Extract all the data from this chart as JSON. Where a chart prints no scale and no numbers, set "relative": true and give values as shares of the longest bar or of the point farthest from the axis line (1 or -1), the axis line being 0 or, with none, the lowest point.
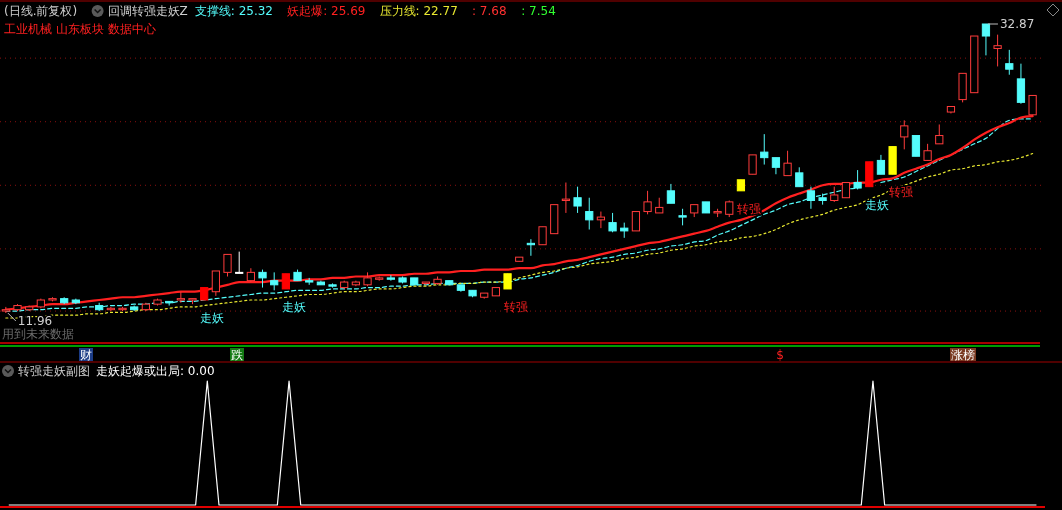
{
  "chart_data": [
    {
      "type": "candlestick",
      "title": "回调转强走妖Z",
      "subtitle": "工业机械 山东板块 数据中心",
      "categories": [
        null,
        null,
        null,
        null,
        null,
        null,
        null,
        null,
        null,
        null,
        null,
        null,
        null,
        null,
        null,
        null,
        null,
        null,
        null,
        null,
        null,
        null,
        null,
        null,
        null,
        null,
        null,
        null,
        null,
        null,
        null,
        null,
        null,
        null,
        null,
        null,
        null,
        null,
        null,
        null,
        null,
        null,
        null,
        null,
        null,
        null,
        null,
        null,
        null,
        null,
        null,
        null,
        null,
        null,
        null,
        null,
        null,
        null,
        null,
        null,
        null,
        null,
        null,
        null,
        null,
        null,
        null,
        null,
        null,
        null,
        null,
        null,
        null,
        null,
        null,
        null,
        null,
        null,
        null,
        null,
        null,
        null,
        null,
        null,
        null,
        null,
        null,
        null,
        null
      ],
      "ohlc": [
        [
          12.1,
          12.4,
          11.96,
          12.2
        ],
        [
          12.2,
          12.6,
          12.1,
          12.5
        ],
        [
          12.2,
          12.5,
          12.1,
          12.4
        ],
        [
          12.4,
          13.0,
          12.3,
          12.9
        ],
        [
          12.9,
          13.1,
          12.8,
          13.0
        ],
        [
          13.0,
          13.1,
          12.6,
          12.7
        ],
        [
          12.9,
          13.0,
          12.6,
          12.7
        ],
        null,
        [
          12.5,
          12.7,
          12.1,
          12.2
        ],
        [
          12.2,
          12.4,
          12.1,
          12.3
        ],
        [
          12.2,
          12.4,
          12.1,
          12.3
        ],
        [
          12.4,
          12.5,
          12.1,
          12.2
        ],
        [
          12.2,
          12.7,
          12.1,
          12.6
        ],
        [
          12.6,
          13.0,
          12.5,
          12.9
        ],
        [
          12.8,
          12.8,
          12.5,
          12.7
        ],
        [
          12.9,
          13.5,
          12.7,
          13.0
        ],
        [
          12.9,
          13.0,
          12.6,
          13.0
        ],
        [
          12.9,
          13.8,
          12.9,
          13.8
        ],
        [
          13.5,
          15.0,
          13.2,
          15.0
        ],
        [
          14.9,
          16.2,
          14.6,
          16.2
        ],
        [
          14.9,
          16.4,
          14.9,
          14.9
        ],
        [
          14.3,
          15.2,
          14.2,
          14.9
        ],
        [
          14.9,
          15.1,
          13.8,
          14.5
        ],
        [
          14.3,
          14.9,
          13.6,
          14.0
        ],
        [
          13.7,
          14.8,
          13.7,
          14.8
        ],
        [
          14.9,
          15.1,
          14.3,
          14.3
        ],
        [
          14.3,
          14.5,
          14.0,
          14.2
        ],
        [
          14.2,
          14.3,
          14.0,
          14.0
        ],
        [
          14.0,
          14.1,
          13.8,
          13.9
        ],
        [
          13.8,
          14.3,
          13.7,
          14.2
        ],
        [
          14.0,
          14.3,
          13.9,
          14.2
        ],
        [
          14.0,
          14.9,
          13.9,
          14.5
        ],
        [
          14.4,
          14.6,
          14.3,
          14.5
        ],
        [
          14.5,
          14.7,
          14.3,
          14.4
        ],
        [
          14.5,
          14.6,
          14.1,
          14.2
        ],
        [
          14.5,
          14.5,
          14.0,
          14.0
        ],
        [
          14.1,
          14.2,
          14.0,
          14.2
        ],
        [
          14.1,
          14.6,
          14.0,
          14.4
        ],
        [
          14.3,
          14.3,
          14.0,
          14.0
        ],
        [
          14.0,
          14.0,
          13.5,
          13.6
        ],
        [
          13.6,
          13.6,
          13.1,
          13.2
        ],
        [
          13.1,
          13.4,
          13.0,
          13.4
        ],
        [
          13.2,
          13.8,
          13.2,
          13.8
        ],
        [
          13.7,
          14.8,
          13.7,
          14.8
        ],
        [
          15.7,
          16.0,
          15.7,
          16.0
        ],
        [
          17.0,
          17.3,
          16.1,
          16.9
        ],
        [
          16.9,
          18.2,
          16.9,
          18.2
        ],
        [
          17.7,
          19.8,
          17.7,
          19.8
        ],
        [
          20.1,
          21.4,
          19.2,
          20.2
        ],
        [
          20.3,
          21.1,
          19.2,
          19.7
        ],
        [
          19.3,
          20.3,
          18.0,
          18.7
        ],
        [
          18.7,
          19.3,
          18.1,
          18.9
        ],
        [
          18.5,
          19.2,
          17.8,
          17.9
        ],
        [
          18.1,
          18.5,
          17.4,
          17.9
        ],
        [
          17.9,
          19.3,
          17.9,
          19.3
        ],
        [
          19.3,
          20.8,
          19.1,
          20.0
        ],
        [
          19.2,
          20.3,
          19.2,
          19.6
        ],
        [
          20.8,
          21.3,
          19.9,
          19.9
        ],
        [
          19.0,
          19.5,
          18.3,
          18.9
        ],
        [
          19.2,
          19.8,
          18.9,
          19.8
        ],
        [
          20.0,
          20.0,
          19.2,
          19.2
        ],
        [
          19.2,
          19.5,
          18.9,
          19.3
        ],
        [
          19.1,
          20.1,
          18.9,
          20.0
        ],
        [
          20.8,
          21.6,
          20.8,
          21.6
        ],
        [
          22.0,
          23.4,
          22.0,
          23.4
        ],
        [
          23.6,
          24.9,
          22.7,
          23.2
        ],
        [
          23.2,
          23.2,
          22.0,
          22.5
        ],
        [
          21.9,
          23.7,
          21.9,
          22.8
        ],
        [
          22.1,
          22.5,
          21.1,
          21.1
        ],
        [
          20.8,
          21.1,
          19.5,
          20.1
        ],
        [
          20.3,
          20.6,
          19.8,
          20.1
        ],
        [
          20.1,
          21.1,
          20.0,
          20.5
        ],
        [
          20.3,
          21.4,
          20.3,
          21.4
        ],
        [
          21.4,
          22.3,
          20.9,
          21.0
        ],
        [
          21.1,
          22.9,
          21.1,
          22.9
        ],
        [
          23.0,
          23.4,
          22.0,
          22.0
        ],
        [
          22.0,
          24.0,
          22.0,
          24.0
        ],
        [
          24.7,
          25.9,
          23.8,
          25.5
        ],
        [
          24.8,
          24.8,
          23.3,
          23.3
        ],
        [
          23.0,
          24.2,
          23.0,
          23.7
        ],
        [
          24.2,
          25.6,
          24.2,
          24.8
        ],
        [
          26.5,
          26.9,
          26.4,
          26.9
        ],
        [
          27.4,
          29.3,
          27.2,
          29.3
        ],
        [
          27.9,
          32.0,
          27.9,
          32.0
        ],
        [
          32.87,
          32.87,
          30.6,
          32.0
        ],
        [
          31.1,
          32.1,
          29.8,
          31.3
        ],
        [
          30.0,
          31.0,
          29.2,
          29.6
        ],
        [
          28.9,
          30.0,
          27.1,
          27.2
        ],
        [
          26.3,
          27.7,
          26.3,
          27.7
        ]
      ],
      "colors": [
        "#ff3c3c",
        "#ff3c3c",
        "#ff3c3c",
        "#ff3c3c",
        "#ff3c3c",
        "#54fcfc",
        "#54fcfc",
        null,
        "#54fcfc",
        "#ff3c3c",
        "#ff3c3c",
        "#54fcfc",
        "#ff3c3c",
        "#ff3c3c",
        "#54fcfc",
        "#ff3c3c",
        "#ff3c3c",
        "#ff0000",
        "#ff3c3c",
        "#ff3c3c",
        "#ffffff",
        "#ff3c3c",
        "#54fcfc",
        "#54fcfc",
        "#ff0000",
        "#54fcfc",
        "#54fcfc",
        "#54fcfc",
        "#54fcfc",
        "#ff3c3c",
        "#ff3c3c",
        "#ff3c3c",
        "#ff3c3c",
        "#54fcfc",
        "#54fcfc",
        "#54fcfc",
        "#ff3c3c",
        "#ff3c3c",
        "#54fcfc",
        "#54fcfc",
        "#54fcfc",
        "#ff3c3c",
        "#ff3c3c",
        "#ffff00",
        "#ff3c3c",
        "#54fcfc",
        "#ff3c3c",
        "#ff3c3c",
        "#ff3c3c",
        "#54fcfc",
        "#54fcfc",
        "#ff3c3c",
        "#54fcfc",
        "#54fcfc",
        "#ff3c3c",
        "#ff3c3c",
        "#ff3c3c",
        "#54fcfc",
        "#54fcfc",
        "#ff3c3c",
        "#54fcfc",
        "#ff3c3c",
        "#ff3c3c",
        "#ffff00",
        "#ff3c3c",
        "#54fcfc",
        "#54fcfc",
        "#ff3c3c",
        "#54fcfc",
        "#54fcfc",
        "#54fcfc",
        "#ff3c3c",
        "#ff3c3c",
        "#54fcfc",
        "#ff0000",
        "#54fcfc",
        "#ffff00",
        "#ff3c3c",
        "#54fcfc",
        "#ff3c3c",
        "#ff3c3c",
        "#ff3c3c",
        "#ff3c3c",
        "#ff3c3c",
        "#54fcfc",
        "#ff3c3c",
        "#54fcfc",
        "#54fcfc",
        "#ff3c3c"
      ],
      "series": [
        {
          "type": "line",
          "color": "#54fcfc",
          "line_style": "dashed",
          "values": [
            12.1,
            12.1,
            12.2,
            12.2,
            12.3,
            12.3,
            12.3,
            12.4,
            12.4,
            12.5,
            12.5,
            12.6,
            12.6,
            12.7,
            12.7,
            12.8,
            12.8,
            12.9,
            13.0,
            13.1,
            13.2,
            13.3,
            13.4,
            13.4,
            13.5,
            13.6,
            13.6,
            13.6,
            13.7,
            13.7,
            13.7,
            13.8,
            13.8,
            13.9,
            13.9,
            14.0,
            14.0,
            14.1,
            14.1,
            14.1,
            14.1,
            14.2,
            14.2,
            14.2,
            14.4,
            14.5,
            14.7,
            14.9,
            15.2,
            15.4,
            15.7,
            15.9,
            16.0,
            16.2,
            16.3,
            16.5,
            16.6,
            16.8,
            16.9,
            17.1,
            17.2,
            17.6,
            17.9,
            18.3,
            18.7,
            19.1,
            19.4,
            19.8,
            20.0,
            20.3,
            20.5,
            20.7,
            20.9,
            21.0,
            null,
            21.4,
            21.6,
            21.8,
            22.2,
            22.6,
            23.0,
            23.4,
            23.8,
            24.2,
            24.6,
            25.3,
            25.9,
            26.0,
            26.0
          ]
        },
        {
          "type": "line",
          "color": "#ff2020",
          "line_style": "solid",
          "values": [
            12.2,
            12.3,
            12.4,
            12.5,
            12.6,
            12.6,
            12.7,
            12.8,
            12.9,
            13.0,
            13.1,
            13.1,
            13.2,
            13.3,
            13.4,
            13.5,
            13.5,
            13.6,
            13.8,
            14.0,
            14.2,
            14.2,
            14.2,
            14.3,
            14.3,
            14.3,
            14.4,
            14.4,
            14.5,
            14.5,
            14.6,
            14.6,
            14.7,
            14.7,
            14.7,
            14.8,
            14.8,
            14.9,
            14.9,
            15.0,
            15.0,
            15.1,
            15.1,
            15.1,
            15.2,
            15.2,
            15.4,
            15.5,
            15.7,
            15.8,
            16.0,
            16.2,
            16.4,
            16.6,
            16.8,
            17.0,
            17.1,
            17.3,
            17.5,
            17.7,
            17.9,
            18.2,
            18.5,
            18.7,
            19.0,
            19.4,
            19.9,
            20.3,
            20.6,
            20.9,
            21.2,
            21.3,
            21.3,
            21.4,
            21.4,
            21.6,
            21.7,
            22.1,
            22.4,
            22.7,
            23.1,
            23.4,
            23.9,
            24.5,
            25.0,
            25.4,
            25.7,
            26.1,
            26.2
          ]
        },
        {
          "type": "line",
          "color": "#e8e830",
          "line_style": "dotted",
          "values": [
            11.6,
            11.6,
            11.7,
            11.7,
            11.8,
            11.8,
            11.8,
            11.9,
            11.9,
            12.0,
            12.0,
            12.1,
            12.2,
            12.2,
            12.3,
            12.4,
            12.4,
            12.5,
            12.6,
            12.7,
            12.8,
            12.9,
            12.9,
            13.0,
            13.1,
            13.2,
            13.3,
            13.3,
            13.4,
            13.5,
            13.5,
            13.6,
            13.7,
            13.7,
            13.8,
            13.9,
            13.9,
            14.0,
            14.0,
            14.1,
            14.1,
            14.2,
            14.2,
            14.3,
            14.5,
            14.7,
            14.9,
            15.0,
            15.2,
            15.3,
            15.5,
            15.6,
            15.7,
            15.9,
            16.0,
            16.2,
            16.3,
            16.5,
            16.6,
            16.8,
            16.9,
            17.1,
            17.2,
            17.4,
            17.5,
            17.7,
            18.0,
            18.4,
            18.7,
            18.9,
            19.1,
            19.4,
            19.6,
            19.8,
            20.2,
            20.5,
            20.9,
            21.2,
            21.5,
            21.8,
            22.0,
            22.3,
            22.4,
            22.6,
            22.7,
            22.9,
            23.0,
            23.2,
            23.5
          ]
        }
      ],
      "yticks": [
        {
          "value": 12.1,
          "label": null
        },
        {
          "value": 16.6,
          "label": null
        },
        {
          "value": 21.2,
          "label": null
        },
        {
          "value": 25.8,
          "label": null
        },
        {
          "value": 30.4,
          "label": null
        }
      ],
      "grid": "y",
      "annotations": [
        "(日线.前复权)",
        "支撑线: 25.32",
        "妖起爆: 25.69",
        "压力线: 22.77",
        ": 7.68",
        ": 7.54",
        "用到未来数据",
        "走妖",
        "走妖",
        "转强",
        "转强",
        "走妖",
        "转强",
        "32.87",
        "11.96"
      ]
    },
    {
      "type": "other",
      "annotations": [
        "财",
        "跌",
        "$",
        "涨榜"
      ]
    },
    {
      "type": "line",
      "title": "转强走妖副图",
      "relative": true,
      "categories": [
        null,
        null,
        null,
        null,
        null,
        null,
        null,
        null,
        null,
        null,
        null,
        null,
        null,
        null,
        null,
        null,
        null,
        null,
        null,
        null,
        null,
        null,
        null,
        null,
        null,
        null,
        null,
        null,
        null,
        null,
        null,
        null,
        null,
        null,
        null,
        null,
        null,
        null,
        null,
        null,
        null,
        null,
        null,
        null,
        null,
        null,
        null,
        null,
        null,
        null,
        null,
        null,
        null,
        null,
        null,
        null,
        null,
        null,
        null,
        null,
        null,
        null,
        null,
        null,
        null,
        null,
        null,
        null,
        null,
        null,
        null,
        null,
        null,
        null,
        null,
        null,
        null,
        null,
        null,
        null,
        null,
        null,
        null,
        null,
        null,
        null,
        null,
        null,
        null
      ],
      "series": [
        {
          "color": "#ffffff",
          "values": [
            0,
            0,
            0,
            0,
            0,
            0,
            0,
            0,
            0,
            0,
            0,
            0,
            0,
            0,
            0,
            0,
            0,
            1,
            0,
            0,
            0,
            0,
            0,
            0,
            1,
            0,
            0,
            0,
            0,
            0,
            0,
            0,
            0,
            0,
            0,
            0,
            0,
            0,
            0,
            0,
            0,
            0,
            0,
            0,
            0,
            0,
            0,
            0,
            0,
            0,
            0,
            0,
            0,
            0,
            0,
            0,
            0,
            0,
            0,
            0,
            0,
            0,
            0,
            0,
            0,
            0,
            0,
            0,
            0,
            0,
            0,
            0,
            0,
            0,
            1,
            0,
            0,
            0,
            0,
            0,
            0,
            0,
            0,
            0,
            0,
            0,
            0,
            0,
            0
          ]
        }
      ],
      "annotations": [
        "走妖起爆或出局: 0.00"
      ]
    }
  ]
}
